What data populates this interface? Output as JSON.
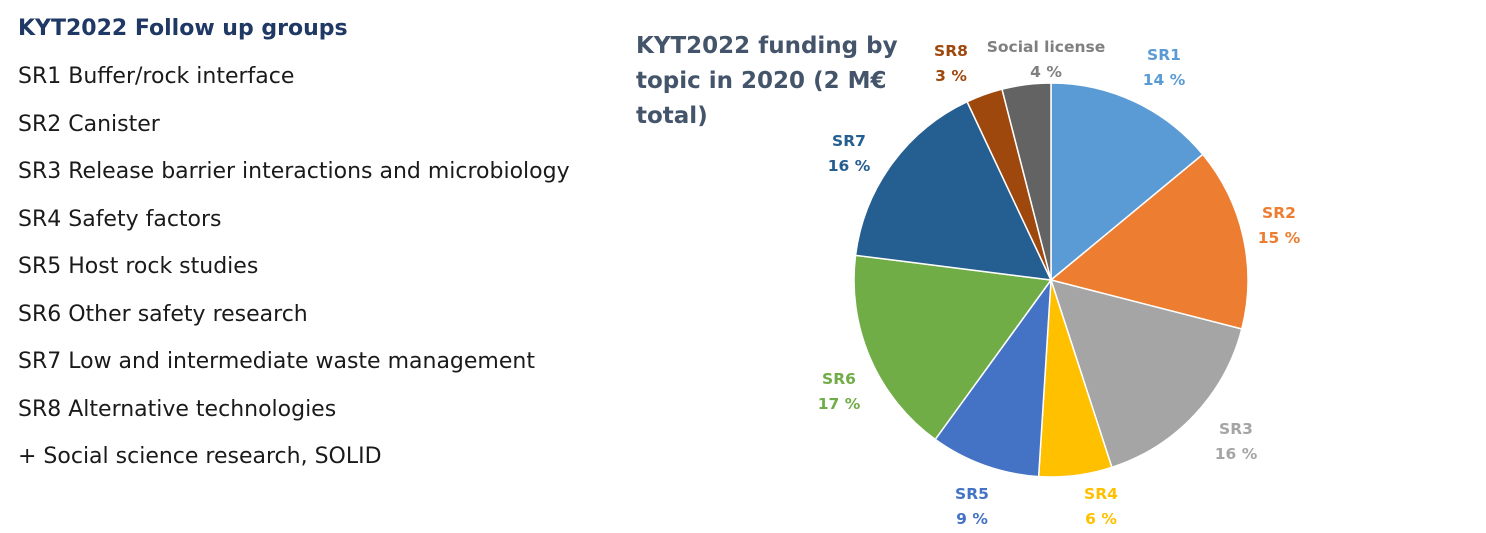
{
  "groups": {
    "heading": "KYT2022 Follow up groups",
    "items": [
      "SR1 Buffer/rock interface",
      "SR2 Canister",
      "SR3 Release barrier interactions and microbiology",
      "SR4 Safety factors",
      "SR5 Host rock studies",
      "SR6 Other safety research",
      "SR7 Low and intermediate waste management",
      "SR8 Alternative technologies",
      "+ Social science research, SOLID"
    ]
  },
  "chart_data": {
    "type": "pie",
    "title": [
      "KYT2022 funding by",
      "topic in 2020 (2 M€",
      "total)"
    ],
    "labels": [
      "SR1",
      "SR2",
      "SR3",
      "SR4",
      "SR5",
      "SR6",
      "SR7",
      "SR8",
      "Social license"
    ],
    "values": [
      14,
      15,
      16,
      6,
      9,
      17,
      16,
      3,
      4
    ],
    "value_labels": [
      "14 %",
      "15 %",
      "16 %",
      "6 %",
      "9 %",
      "17 %",
      "16 %",
      "3 %",
      "4 %"
    ],
    "colors": [
      "#5b9bd5",
      "#ed7d31",
      "#a5a5a5",
      "#ffc000",
      "#4472c4",
      "#70ad47",
      "#255e91",
      "#9e480e",
      "#636363"
    ],
    "start": "12 o'clock, clockwise"
  }
}
